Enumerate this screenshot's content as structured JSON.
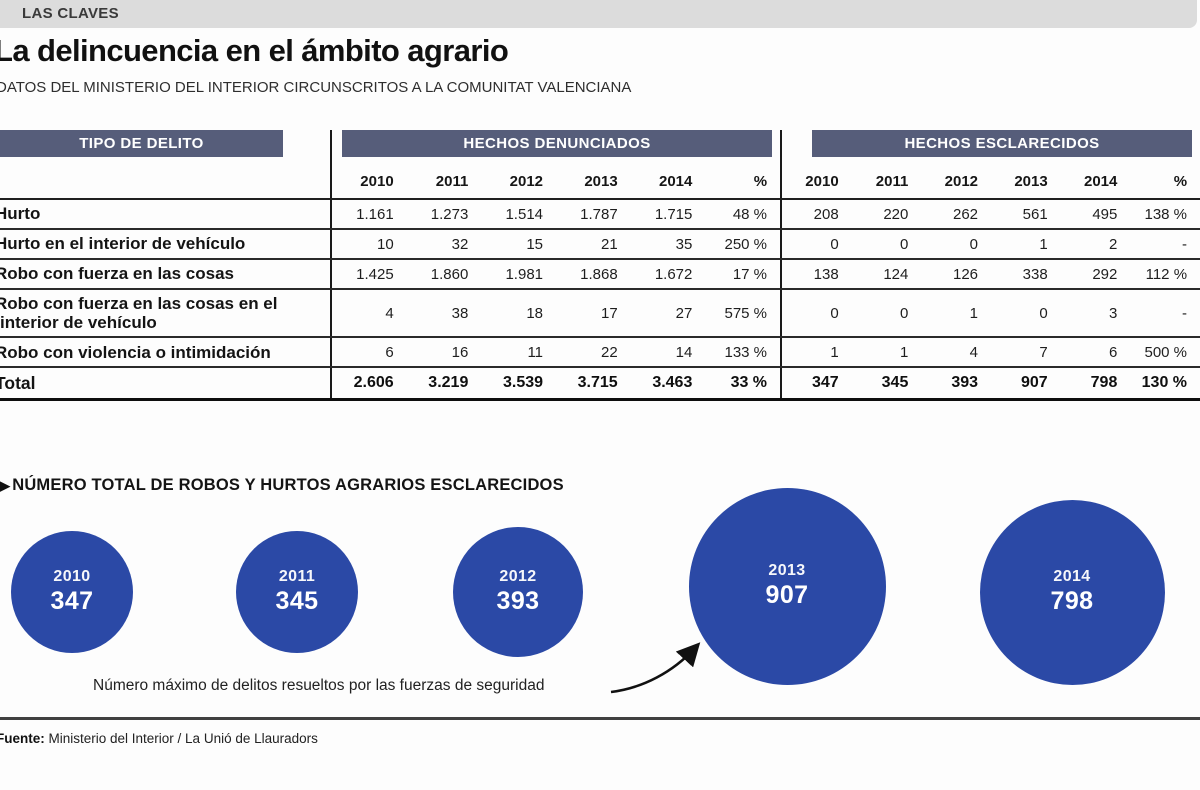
{
  "kicker": "LAS CLAVES",
  "title": "La delincuencia en el ámbito agrario",
  "subtitle": "DATOS DEL MINISTERIO DEL INTERIOR CIRCUNSCRITOS A LA COMUNITAT VALENCIANA",
  "colors": {
    "kicker_band_gray": "#dcdcdc",
    "table_header_band": "#565d7a",
    "bubble_blue": "#2b49a6",
    "text_dark": "#141414"
  },
  "table": {
    "label_header": "TIPO DE DELITO",
    "group1_header": "HECHOS DENUNCIADOS",
    "group2_header": "HECHOS ESCLARECIDOS",
    "years": [
      "2010",
      "2011",
      "2012",
      "2013",
      "2014",
      "%"
    ],
    "rows": [
      {
        "label": "Hurto",
        "bold": false,
        "denunciados": [
          "1.161",
          "1.273",
          "1.514",
          "1.787",
          "1.715",
          "48 %"
        ],
        "esclarecidos": [
          "208",
          "220",
          "262",
          "561",
          "495",
          "138 %"
        ]
      },
      {
        "label": "Hurto en el interior de vehículo",
        "bold": false,
        "denunciados": [
          "10",
          "32",
          "15",
          "21",
          "35",
          "250 %"
        ],
        "esclarecidos": [
          "0",
          "0",
          "0",
          "1",
          "2",
          "-"
        ]
      },
      {
        "label": "Robo con fuerza en las cosas",
        "bold": false,
        "denunciados": [
          "1.425",
          "1.860",
          "1.981",
          "1.868",
          "1.672",
          "17 %"
        ],
        "esclarecidos": [
          "138",
          "124",
          "126",
          "338",
          "292",
          "112 %"
        ]
      },
      {
        "label": "Robo con fuerza en las cosas en el interior de vehículo",
        "bold": false,
        "denunciados": [
          "4",
          "38",
          "18",
          "17",
          "27",
          "575 %"
        ],
        "esclarecidos": [
          "0",
          "0",
          "1",
          "0",
          "3",
          "-"
        ]
      },
      {
        "label": "Robo con violencia o intimidación",
        "bold": false,
        "denunciados": [
          "6",
          "16",
          "11",
          "22",
          "14",
          "133 %"
        ],
        "esclarecidos": [
          "1",
          "1",
          "4",
          "7",
          "6",
          "500 %"
        ]
      },
      {
        "label": "Total",
        "bold": true,
        "denunciados": [
          "2.606",
          "3.219",
          "3.539",
          "3.715",
          "3.463",
          "33 %"
        ],
        "esclarecidos": [
          "347",
          "345",
          "393",
          "907",
          "798",
          "130 %"
        ]
      }
    ]
  },
  "bubbles": {
    "section_title": "NÚMERO TOTAL DE ROBOS Y HURTOS AGRARIOS ESCLARECIDOS",
    "items": [
      {
        "year": "2010",
        "value": "347"
      },
      {
        "year": "2011",
        "value": "345"
      },
      {
        "year": "2012",
        "value": "393"
      },
      {
        "year": "2013",
        "value": "907"
      },
      {
        "year": "2014",
        "value": "798"
      }
    ],
    "annotation": "Número máximo de delitos resueltos por las fuerzas de seguridad"
  },
  "footer": {
    "source_label": "Fuente:",
    "source_text": " Ministerio del Interior / La Unió de Llauradors"
  },
  "chart_data": [
    {
      "type": "table",
      "title": "La delincuencia en el ámbito agrario",
      "subtitle": "Datos del Ministerio del Interior circunscritos a la Comunitat Valenciana",
      "column_groups": [
        "HECHOS DENUNCIADOS",
        "HECHOS ESCLARECIDOS"
      ],
      "years": [
        2010,
        2011,
        2012,
        2013,
        2014
      ],
      "rows": [
        {
          "tipo_de_delito": "Hurto",
          "denunciados": [
            1161,
            1273,
            1514,
            1787,
            1715
          ],
          "denunciados_pct": "48 %",
          "esclarecidos": [
            208,
            220,
            262,
            561,
            495
          ],
          "esclarecidos_pct": "138 %"
        },
        {
          "tipo_de_delito": "Hurto en el interior de vehículo",
          "denunciados": [
            10,
            32,
            15,
            21,
            35
          ],
          "denunciados_pct": "250 %",
          "esclarecidos": [
            0,
            0,
            0,
            1,
            2
          ],
          "esclarecidos_pct": null
        },
        {
          "tipo_de_delito": "Robo con fuerza en las cosas",
          "denunciados": [
            1425,
            1860,
            1981,
            1868,
            1672
          ],
          "denunciados_pct": "17 %",
          "esclarecidos": [
            138,
            124,
            126,
            338,
            292
          ],
          "esclarecidos_pct": "112 %"
        },
        {
          "tipo_de_delito": "Robo con fuerza en las cosas en el interior de vehículo",
          "denunciados": [
            4,
            38,
            18,
            17,
            27
          ],
          "denunciados_pct": "575 %",
          "esclarecidos": [
            0,
            0,
            1,
            0,
            3
          ],
          "esclarecidos_pct": null
        },
        {
          "tipo_de_delito": "Robo con violencia o intimidación",
          "denunciados": [
            6,
            16,
            11,
            22,
            14
          ],
          "denunciados_pct": "133 %",
          "esclarecidos": [
            1,
            1,
            4,
            7,
            6
          ],
          "esclarecidos_pct": "500 %"
        },
        {
          "tipo_de_delito": "Total",
          "denunciados": [
            2606,
            3219,
            3539,
            3715,
            3463
          ],
          "denunciados_pct": "33 %",
          "esclarecidos": [
            347,
            345,
            393,
            907,
            798
          ],
          "esclarecidos_pct": "130 %"
        }
      ]
    },
    {
      "type": "scatter",
      "subtype": "proportional-bubbles",
      "title": "NÚMERO TOTAL DE ROBOS Y HURTOS AGRARIOS ESCLARECIDOS",
      "categories": [
        "2010",
        "2011",
        "2012",
        "2013",
        "2014"
      ],
      "values": [
        347,
        345,
        393,
        907,
        798
      ],
      "annotation": "Número máximo de delitos resueltos por las fuerzas de seguridad (señala 2013: 907)",
      "note": "bubble radius proportional to sqrt(value)"
    }
  ]
}
